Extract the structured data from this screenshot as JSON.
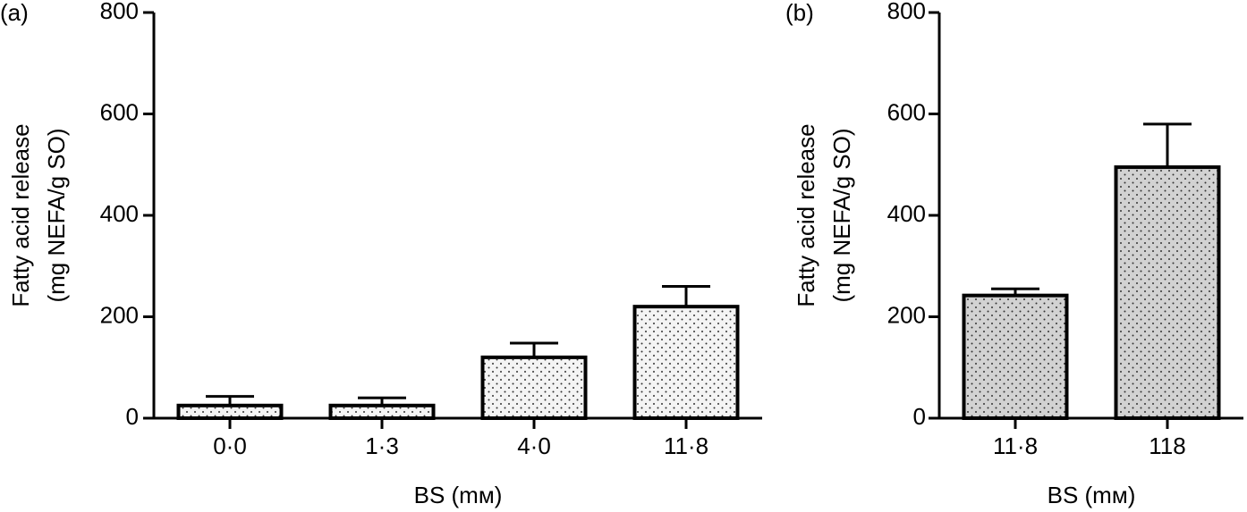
{
  "chart_data": [
    {
      "type": "bar",
      "panel": "(a)",
      "ylabel": [
        "Fatty acid release",
        "(mg NEFA/g SO)"
      ],
      "xlabel": "BS (mм)",
      "categories": [
        "0·0",
        "1·3",
        "4·0",
        "11·8"
      ],
      "values": [
        25,
        25,
        120,
        220
      ],
      "errors": [
        18,
        15,
        28,
        40
      ],
      "color": "#f4f4f4",
      "ylim": [
        0,
        800
      ],
      "yticks": [
        0,
        200,
        400,
        600,
        800
      ]
    },
    {
      "type": "bar",
      "panel": "(b)",
      "ylabel": [
        "Fatty acid release",
        "(mg NEFA/g SO)"
      ],
      "xlabel": "BS (mм)",
      "categories": [
        "11·8",
        "118"
      ],
      "values": [
        242,
        495
      ],
      "errors": [
        13,
        85
      ],
      "color": "#d2d2d2",
      "ylim": [
        0,
        800
      ],
      "yticks": [
        0,
        200,
        400,
        600,
        800
      ]
    }
  ]
}
